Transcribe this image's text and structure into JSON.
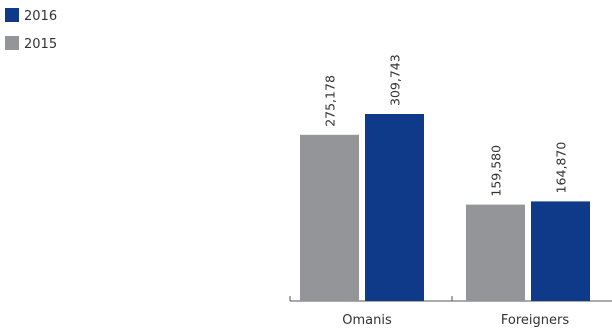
{
  "chart_data": {
    "type": "bar",
    "categories": [
      "Omanis",
      "Foreigners"
    ],
    "series": [
      {
        "name": "2015",
        "color": "#939598",
        "values": [
          275178,
          159580
        ],
        "labels": [
          "275,178",
          "159,580"
        ]
      },
      {
        "name": "2016",
        "color": "#0f3a8a",
        "values": [
          309743,
          164870
        ],
        "labels": [
          "309,743",
          "164,870"
        ]
      }
    ],
    "legend": {
      "placement": "top-left",
      "order": [
        "2016",
        "2015"
      ]
    },
    "ylim": [
      0,
      340000
    ],
    "grid": false,
    "data_labels": "vertical"
  }
}
